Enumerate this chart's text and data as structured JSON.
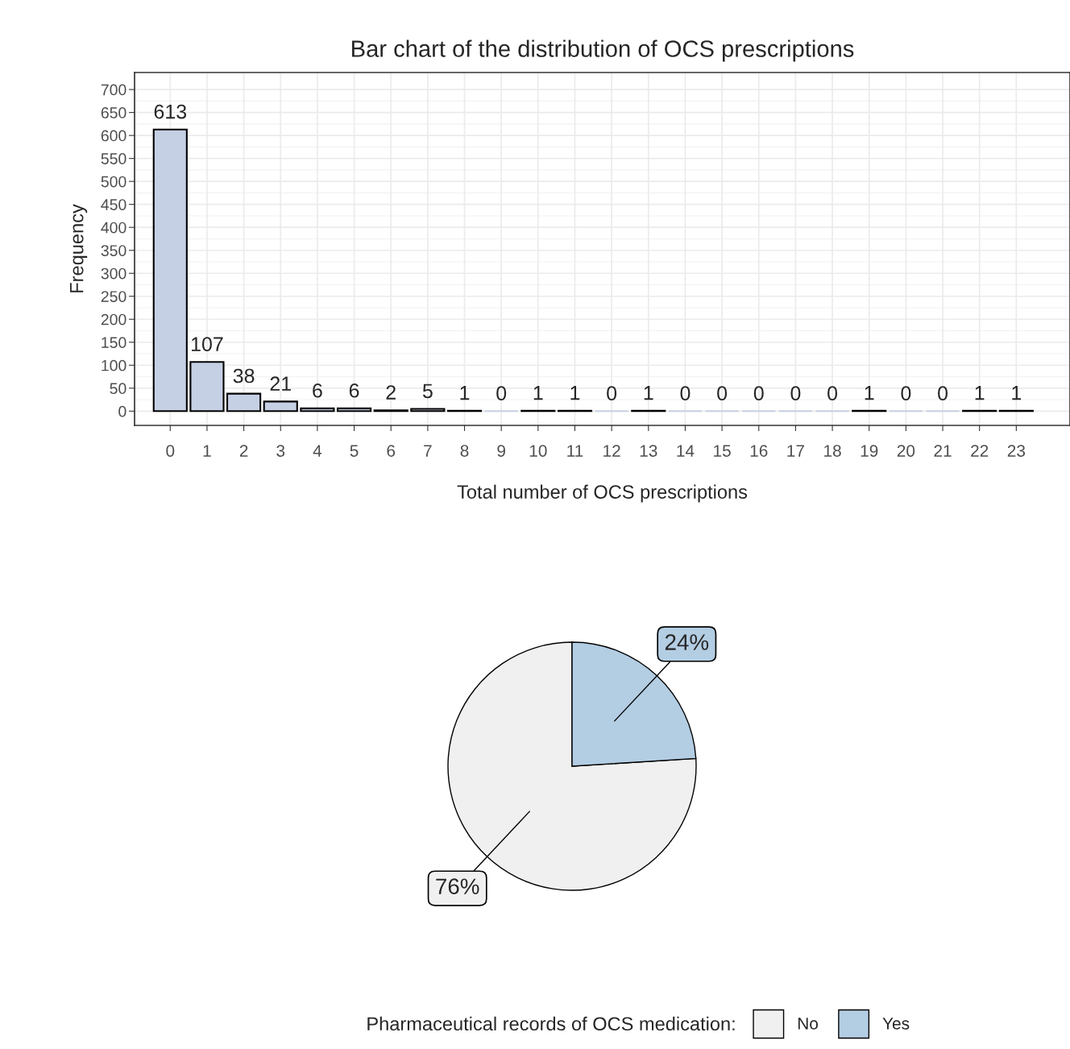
{
  "chart_data": [
    {
      "type": "bar",
      "title": "Bar chart of the distribution of OCS prescriptions",
      "xlabel": "Total number of OCS prescriptions",
      "ylabel": "Frequency",
      "categories": [
        "0",
        "1",
        "2",
        "3",
        "4",
        "5",
        "6",
        "7",
        "8",
        "9",
        "10",
        "11",
        "12",
        "13",
        "14",
        "15",
        "16",
        "17",
        "18",
        "19",
        "20",
        "21",
        "22",
        "23"
      ],
      "values": [
        613,
        107,
        38,
        21,
        6,
        6,
        2,
        5,
        1,
        0,
        1,
        1,
        0,
        1,
        0,
        0,
        0,
        0,
        0,
        1,
        0,
        0,
        1,
        1
      ],
      "color": "#c6d0e4",
      "ylim": [
        -31,
        737
      ],
      "yticks": [
        0,
        50,
        100,
        150,
        200,
        250,
        300,
        350,
        400,
        450,
        500,
        550,
        600,
        650,
        700
      ],
      "grid": true,
      "data_labels": true
    },
    {
      "type": "pie",
      "categories": [
        "No",
        "Yes"
      ],
      "values": [
        76,
        24
      ],
      "colors": [
        "#f0f0f0",
        "#b3cde3"
      ],
      "value_labels": [
        "76%",
        "24%"
      ],
      "legend_title": "Pharmaceutical records of OCS medication:",
      "legend": "bottom"
    }
  ]
}
